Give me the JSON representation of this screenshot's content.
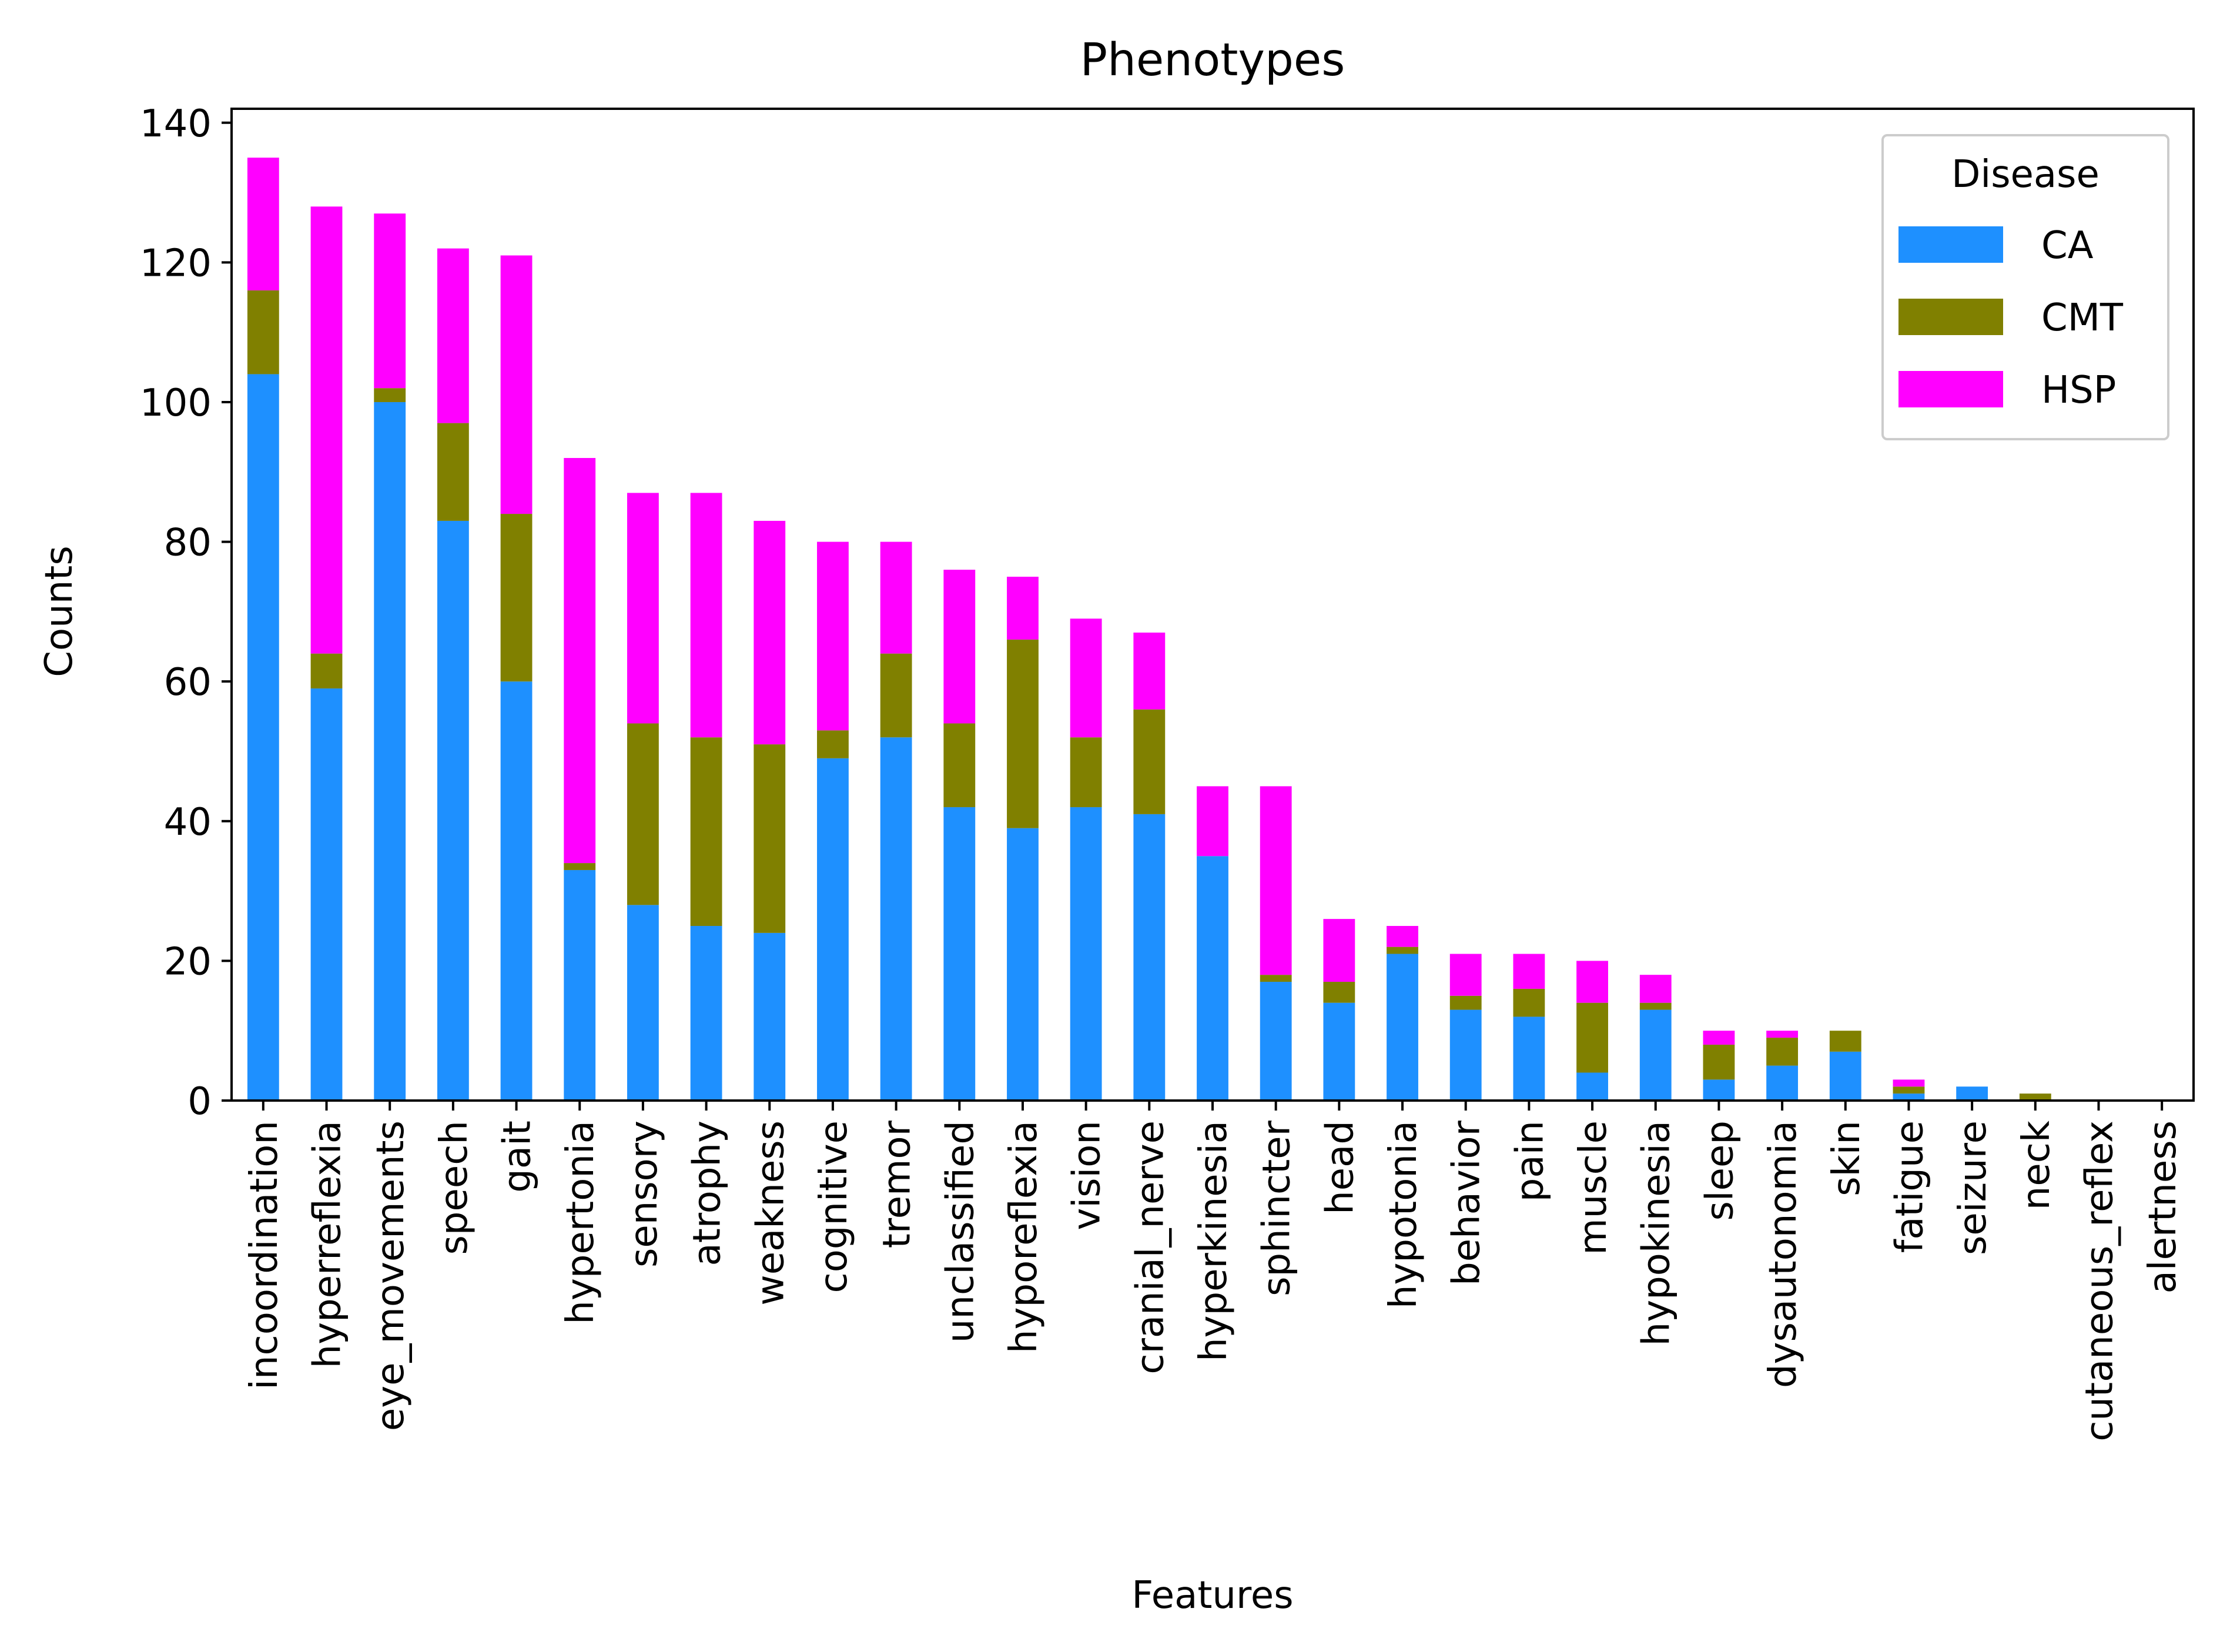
{
  "chart_data": {
    "type": "bar",
    "stacked": true,
    "title": "Phenotypes",
    "xlabel": "Features",
    "ylabel": "Counts",
    "ylim": [
      0,
      142
    ],
    "yticks": [
      0,
      20,
      40,
      60,
      80,
      100,
      120,
      140
    ],
    "grid": false,
    "legend": {
      "title": "Disease",
      "placement": "top-right"
    },
    "categories": [
      "incoordination",
      "hyperreflexia",
      "eye_movements",
      "speech",
      "gait",
      "hypertonia",
      "sensory",
      "atrophy",
      "weakness",
      "cognitive",
      "tremor",
      "unclassified",
      "hyporeflexia",
      "vision",
      "cranial_nerve",
      "hyperkinesia",
      "sphincter",
      "head",
      "hypotonia",
      "behavior",
      "pain",
      "muscle",
      "hypokinesia",
      "sleep",
      "dysautonomia",
      "skin",
      "fatigue",
      "seizure",
      "neck",
      "cutaneous_reflex",
      "alertness"
    ],
    "series": [
      {
        "name": "CA",
        "color": "#1e90ff",
        "values": [
          104,
          59,
          100,
          83,
          60,
          33,
          28,
          25,
          24,
          49,
          52,
          42,
          39,
          42,
          41,
          35,
          17,
          14,
          21,
          13,
          12,
          4,
          13,
          3,
          5,
          7,
          1,
          2,
          0,
          0,
          0
        ]
      },
      {
        "name": "CMT",
        "color": "#808000",
        "values": [
          12,
          5,
          2,
          14,
          24,
          1,
          26,
          27,
          27,
          4,
          12,
          12,
          27,
          10,
          15,
          0,
          1,
          3,
          1,
          2,
          4,
          10,
          1,
          5,
          4,
          3,
          1,
          0,
          1,
          0,
          0
        ]
      },
      {
        "name": "HSP",
        "color": "#ff00ff",
        "values": [
          19,
          64,
          25,
          25,
          37,
          58,
          33,
          35,
          32,
          27,
          16,
          22,
          9,
          17,
          11,
          10,
          27,
          9,
          3,
          6,
          5,
          6,
          4,
          2,
          1,
          0,
          1,
          0,
          0,
          0,
          0
        ]
      }
    ]
  }
}
